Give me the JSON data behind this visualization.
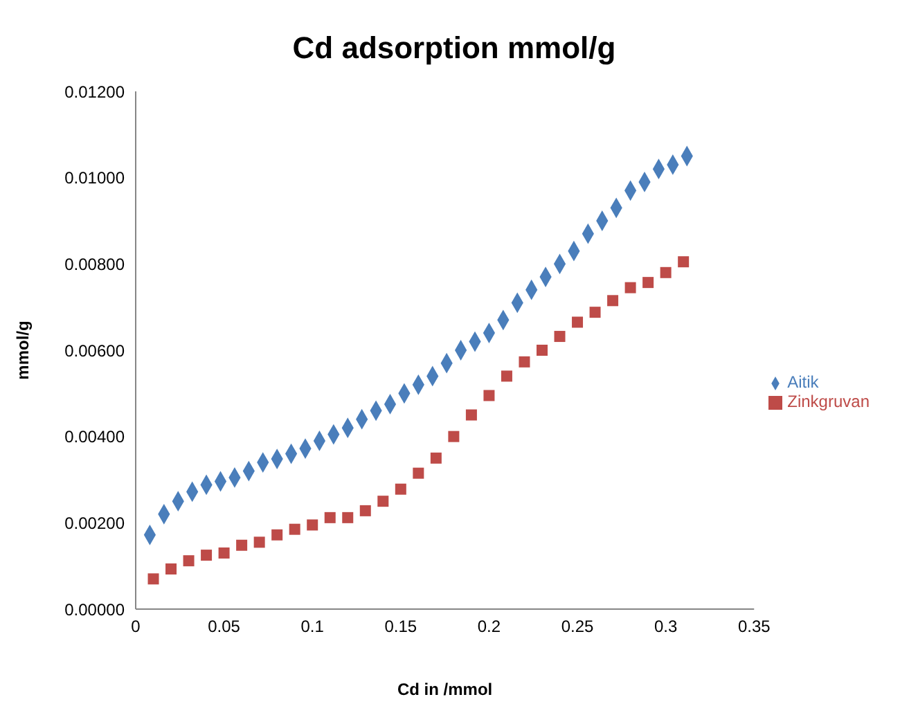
{
  "chart_data": {
    "type": "scatter",
    "title": "Cd adsorption mmol/g",
    "xlabel": "Cd in /mmol",
    "ylabel": "mmol/g",
    "xlim": [
      0,
      0.35
    ],
    "xticks": [
      0,
      0.05,
      0.1,
      0.15,
      0.2,
      0.25,
      0.3,
      0.35
    ],
    "ylim": [
      0,
      0.012
    ],
    "yticks": [
      {
        "value": 0,
        "label": "0.00000"
      },
      {
        "value": 0.002,
        "label": "0.00200"
      },
      {
        "value": 0.004,
        "label": "0.00400"
      },
      {
        "value": 0.006,
        "label": "0.00600"
      },
      {
        "value": 0.008,
        "label": "0.00800"
      },
      {
        "value": 0.01,
        "label": "0.01000"
      },
      {
        "value": 0.012,
        "label": "0.01200"
      }
    ],
    "grid": false,
    "legend": "right",
    "series": [
      {
        "name": "Aitik",
        "color": "#4a7ebb",
        "marker": "diamond",
        "x": [
          0.008,
          0.016,
          0.024,
          0.032,
          0.04,
          0.048,
          0.056,
          0.064,
          0.072,
          0.08,
          0.088,
          0.096,
          0.104,
          0.112,
          0.12,
          0.128,
          0.136,
          0.144,
          0.152,
          0.16,
          0.168,
          0.176,
          0.184,
          0.192,
          0.2,
          0.208,
          0.216,
          0.224,
          0.232,
          0.24,
          0.248,
          0.256,
          0.264,
          0.272,
          0.28,
          0.288,
          0.296,
          0.304,
          0.312
        ],
        "values": [
          0.00172,
          0.0022,
          0.0025,
          0.00272,
          0.00288,
          0.00296,
          0.00305,
          0.0032,
          0.0034,
          0.00348,
          0.0036,
          0.00372,
          0.0039,
          0.00405,
          0.0042,
          0.0044,
          0.0046,
          0.00475,
          0.005,
          0.0052,
          0.0054,
          0.0057,
          0.006,
          0.0062,
          0.0064,
          0.0067,
          0.0071,
          0.0074,
          0.0077,
          0.008,
          0.0083,
          0.0087,
          0.009,
          0.0093,
          0.0097,
          0.0099,
          0.0102,
          0.0103,
          0.0105
        ]
      },
      {
        "name": "Zinkgruvan",
        "color": "#be4b48",
        "marker": "square",
        "x": [
          0.01,
          0.02,
          0.03,
          0.04,
          0.05,
          0.06,
          0.07,
          0.08,
          0.09,
          0.1,
          0.11,
          0.12,
          0.13,
          0.14,
          0.15,
          0.16,
          0.17,
          0.18,
          0.19,
          0.2,
          0.21,
          0.22,
          0.23,
          0.24,
          0.25,
          0.26,
          0.27,
          0.28,
          0.29,
          0.3,
          0.31
        ],
        "values": [
          0.0007,
          0.00093,
          0.00112,
          0.00125,
          0.0013,
          0.00148,
          0.00155,
          0.00172,
          0.00185,
          0.00195,
          0.00212,
          0.00212,
          0.00228,
          0.0025,
          0.00278,
          0.00315,
          0.0035,
          0.004,
          0.0045,
          0.00495,
          0.0054,
          0.00573,
          0.006,
          0.00632,
          0.00665,
          0.00688,
          0.00715,
          0.00745,
          0.00757,
          0.0078,
          0.00805
        ]
      }
    ]
  }
}
